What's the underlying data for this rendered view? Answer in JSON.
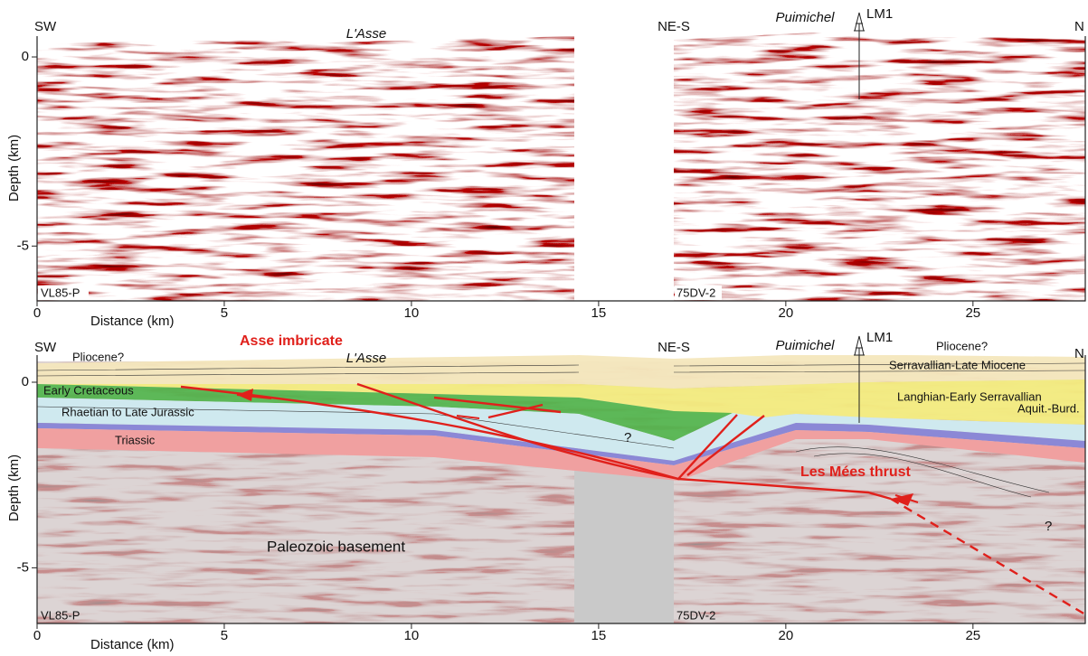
{
  "panels": [
    {
      "label_left": "SW",
      "label_mid": "L'Asse",
      "label_ne": "NE-S",
      "label_puimichel": "Puimichel",
      "well": "LM1",
      "label_right": "N",
      "line_left": "VL85-P",
      "line_right": "75DV-2",
      "y_axis_title": "Depth (km)",
      "x_axis_title": "Distance (km)",
      "xlim": [
        0,
        28
      ],
      "ylim": [
        0.55,
        -6.45
      ],
      "xticks": [
        0,
        5,
        10,
        15,
        20,
        25
      ],
      "yticks": [
        0,
        -5
      ]
    },
    {
      "label_left": "SW",
      "label_mid": "L'Asse",
      "label_ne": "NE-S",
      "label_puimichel": "Puimichel",
      "well": "LM1",
      "label_right": "N",
      "line_left": "VL85-P",
      "line_right": "75DV-2",
      "y_axis_title": "Depth (km)",
      "x_axis_title": "Distance (km)",
      "xlim": [
        0,
        28
      ],
      "ylim": [
        0.73,
        -6.5
      ],
      "xticks": [
        0,
        5,
        10,
        15,
        20,
        25
      ],
      "yticks": [
        0,
        -5
      ],
      "annotations": {
        "asse_imbricate": "Asse imbricate",
        "pliocene_left": "Pliocene?",
        "pliocene_right": "Pliocene?",
        "serravallian": "Serravallian-Late Miocene",
        "langhian": "Langhian-Early Serravallian",
        "aquit": "Aquit.-Burd.",
        "early_cretaceous": "Early Cretaceous",
        "rhaetian_jurassic": "Rhaetian to Late Jurassic",
        "triassic": "Triassic",
        "question_center": "?",
        "question_right": "?",
        "les_mees_thrust": "Les Mées thrust",
        "basement": "Paleozoic basement"
      }
    }
  ]
}
